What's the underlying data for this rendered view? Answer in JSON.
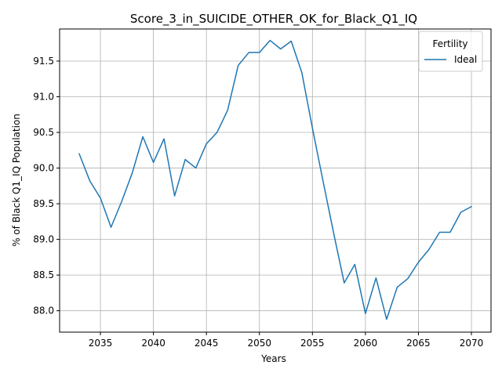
{
  "chart_data": {
    "type": "line",
    "title": "Score_3_in_SUICIDE_OTHER_OK_for_Black_Q1_IQ",
    "xlabel": "Years",
    "ylabel": "% of Black Q1_IQ Population",
    "xlim": [
      2031.15,
      2071.85
    ],
    "ylim": [
      87.7,
      91.95
    ],
    "xticks": [
      2035,
      2040,
      2045,
      2050,
      2055,
      2060,
      2065,
      2070
    ],
    "xtick_labels": [
      "2035",
      "2040",
      "2045",
      "2050",
      "2055",
      "2060",
      "2065",
      "2070"
    ],
    "yticks": [
      88.0,
      88.5,
      89.0,
      89.5,
      90.0,
      90.5,
      91.0,
      91.5
    ],
    "ytick_labels": [
      "88.0",
      "88.5",
      "89.0",
      "89.5",
      "90.0",
      "90.5",
      "91.0",
      "91.5"
    ],
    "grid": true,
    "legend": {
      "title": "Fertility",
      "placement": "top-right"
    },
    "series": [
      {
        "name": "Ideal",
        "color": "#1f77b4",
        "x": [
          2033,
          2034,
          2035,
          2036,
          2037,
          2038,
          2039,
          2040,
          2041,
          2042,
          2043,
          2044,
          2045,
          2046,
          2047,
          2048,
          2049,
          2050,
          2051,
          2052,
          2053,
          2054,
          2055,
          2056,
          2057,
          2058,
          2059,
          2060,
          2061,
          2062,
          2063,
          2064,
          2065,
          2066,
          2067,
          2068,
          2069,
          2070
        ],
        "y": [
          90.2,
          89.82,
          89.58,
          89.17,
          89.53,
          89.93,
          90.44,
          90.08,
          90.41,
          89.61,
          90.12,
          90.0,
          90.34,
          90.5,
          90.81,
          91.44,
          91.62,
          91.62,
          91.79,
          91.67,
          91.78,
          91.34,
          90.56,
          89.82,
          89.09,
          88.39,
          88.65,
          87.96,
          88.46,
          87.88,
          88.33,
          88.45,
          88.68,
          88.86,
          89.1,
          89.1,
          89.38,
          89.46
        ]
      }
    ]
  }
}
